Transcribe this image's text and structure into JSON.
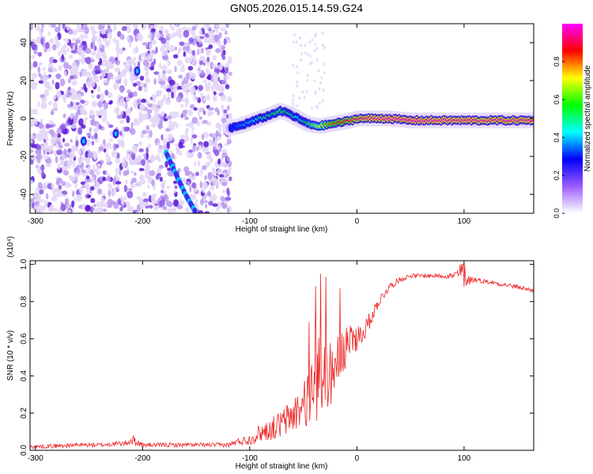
{
  "title": "GN05.2026.015.14.59.G24",
  "colors": {
    "snr_line": "#ee2222",
    "ridge_low": "#4b00d9",
    "ridge_mid": "#00ddff",
    "ridge_high": "#ff0000",
    "noise_light": "#d8c8f5",
    "noise_dark": "#6a2bd6"
  },
  "chart_data": [
    {
      "type": "heatmap",
      "name": "spectrogram",
      "xlabel": "Height of straight line (km)",
      "ylabel": "Frequency (Hz)",
      "xlim": [
        -305,
        165
      ],
      "ylim": [
        -50,
        50
      ],
      "xticks": [
        -300,
        -200,
        -100,
        0,
        100
      ],
      "xtick_labels": [
        "-300",
        "-200",
        "-100",
        "0",
        "100"
      ],
      "yticks": [
        -40,
        -20,
        0,
        20,
        40
      ],
      "ytick_labels": [
        "-40",
        "-20",
        "0",
        "20",
        "40"
      ],
      "noise_region_xmax": -118,
      "signal_ridge": {
        "x": [
          -118,
          -110,
          -100,
          -90,
          -80,
          -72,
          -65,
          -55,
          -45,
          -35,
          -25,
          -15,
          -5,
          0,
          10,
          30,
          50,
          70,
          90,
          110,
          130,
          150,
          165
        ],
        "y": [
          -5,
          -4,
          -2,
          0,
          2,
          4,
          3,
          0,
          -3,
          -4,
          -3,
          -2,
          -1,
          0,
          0,
          0,
          -1,
          -1,
          -1,
          -1,
          -1,
          -1,
          -1
        ],
        "amplitude": [
          0.25,
          0.35,
          0.4,
          0.5,
          0.55,
          0.6,
          0.55,
          0.45,
          0.6,
          0.7,
          0.8,
          0.85,
          0.9,
          0.92,
          0.95,
          0.97,
          0.98,
          0.97,
          0.96,
          0.95,
          0.95,
          0.95,
          0.95
        ]
      },
      "diagonal_track": {
        "x": [
          -178,
          -170,
          -160,
          -150
        ],
        "y": [
          -18,
          -28,
          -40,
          -50
        ]
      },
      "colorbar": {
        "label": "Normalized spectral amplitude",
        "range": [
          0,
          1
        ],
        "ticks": [
          0.0,
          0.2,
          0.4,
          0.6,
          0.8
        ],
        "tick_labels": [
          "0.0",
          "0.2",
          "0.4",
          "0.6",
          "0.8"
        ],
        "stops": [
          "#ffffff",
          "#9b5cff",
          "#0000ff",
          "#00ffff",
          "#00ff00",
          "#ffff00",
          "#ff0000",
          "#ff00ff"
        ]
      }
    },
    {
      "type": "line",
      "name": "snr",
      "xlabel": "Height of straight line (km)",
      "ylabel": "SNR (10 * v/v)",
      "multiplier": "(x10⁴)",
      "xlim": [
        -305,
        165
      ],
      "ylim": [
        0,
        1.02
      ],
      "xticks": [
        -300,
        -200,
        -100,
        0,
        100
      ],
      "xtick_labels": [
        "-300",
        "-200",
        "-100",
        "0",
        "100"
      ],
      "yticks": [
        0.0,
        0.2,
        0.4,
        0.6,
        0.8,
        1.0
      ],
      "ytick_labels": [
        "0.0",
        "0.2",
        "0.4",
        "0.6",
        "0.8",
        "1.0"
      ],
      "series": [
        {
          "name": "SNR",
          "x": [
            -305,
            -280,
            -260,
            -240,
            -215,
            -210,
            -200,
            -180,
            -160,
            -140,
            -120,
            -110,
            -100,
            -90,
            -80,
            -70,
            -60,
            -50,
            -45,
            -40,
            -35,
            -30,
            -25,
            -20,
            -15,
            -10,
            -5,
            0,
            5,
            10,
            15,
            20,
            30,
            40,
            50,
            60,
            70,
            80,
            90,
            95,
            100,
            105,
            110,
            120,
            130,
            140,
            150,
            165
          ],
          "y": [
            0.02,
            0.025,
            0.03,
            0.03,
            0.04,
            0.06,
            0.03,
            0.03,
            0.03,
            0.03,
            0.03,
            0.05,
            0.06,
            0.1,
            0.12,
            0.15,
            0.2,
            0.25,
            0.3,
            0.35,
            0.42,
            0.45,
            0.42,
            0.5,
            0.52,
            0.55,
            0.6,
            0.62,
            0.63,
            0.68,
            0.74,
            0.8,
            0.88,
            0.92,
            0.94,
            0.94,
            0.94,
            0.94,
            0.94,
            0.95,
            0.93,
            0.92,
            0.92,
            0.91,
            0.9,
            0.89,
            0.88,
            0.86
          ],
          "noise": [
            0.01,
            0.012,
            0.012,
            0.012,
            0.015,
            0.03,
            0.012,
            0.012,
            0.012,
            0.012,
            0.012,
            0.02,
            0.03,
            0.05,
            0.06,
            0.08,
            0.1,
            0.12,
            0.15,
            0.2,
            0.22,
            0.2,
            0.18,
            0.15,
            0.14,
            0.12,
            0.1,
            0.08,
            0.06,
            0.05,
            0.04,
            0.03,
            0.02,
            0.015,
            0.012,
            0.012,
            0.012,
            0.012,
            0.02,
            0.04,
            0.05,
            0.03,
            0.015,
            0.012,
            0.012,
            0.012,
            0.012,
            0.012
          ]
        }
      ]
    }
  ]
}
